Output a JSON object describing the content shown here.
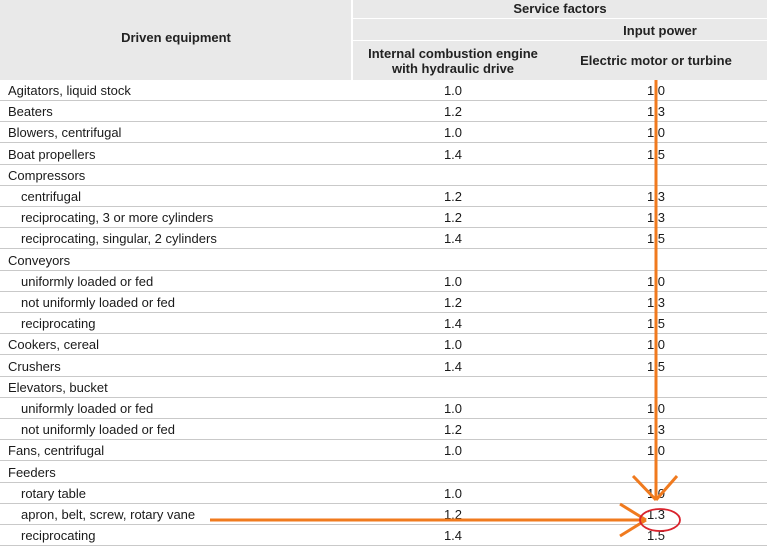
{
  "header": {
    "col1": "Driven equipment",
    "group": "Service factors",
    "subgroup": "Input power",
    "col2_line1": "Internal combustion engine",
    "col2_line2": "with hydraulic drive",
    "col3": "Electric motor or turbine"
  },
  "rows": [
    {
      "label": "Agitators, liquid stock",
      "indent": false,
      "ice": "1.0",
      "em": "1.0"
    },
    {
      "label": "Beaters",
      "indent": false,
      "ice": "1.2",
      "em": "1.3"
    },
    {
      "label": "Blowers, centrifugal",
      "indent": false,
      "ice": "1.0",
      "em": "1.0"
    },
    {
      "label": "Boat propellers",
      "indent": false,
      "ice": "1.4",
      "em": "1.5"
    },
    {
      "label": "Compressors",
      "indent": false,
      "ice": "",
      "em": ""
    },
    {
      "label": "centrifugal",
      "indent": true,
      "ice": "1.2",
      "em": "1.3"
    },
    {
      "label": "reciprocating, 3 or more cylinders",
      "indent": true,
      "ice": "1.2",
      "em": "1.3"
    },
    {
      "label": "reciprocating, singular, 2 cylinders",
      "indent": true,
      "ice": "1.4",
      "em": "1.5"
    },
    {
      "label": "Conveyors",
      "indent": false,
      "ice": "",
      "em": ""
    },
    {
      "label": "uniformly loaded or fed",
      "indent": true,
      "ice": "1.0",
      "em": "1.0"
    },
    {
      "label": "not uniformly loaded or fed",
      "indent": true,
      "ice": "1.2",
      "em": "1.3"
    },
    {
      "label": "reciprocating",
      "indent": true,
      "ice": "1.4",
      "em": "1.5"
    },
    {
      "label": "Cookers, cereal",
      "indent": false,
      "ice": "1.0",
      "em": "1.0"
    },
    {
      "label": "Crushers",
      "indent": false,
      "ice": "1.4",
      "em": "1.5"
    },
    {
      "label": "Elevators, bucket",
      "indent": false,
      "ice": "",
      "em": ""
    },
    {
      "label": "uniformly loaded or fed",
      "indent": true,
      "ice": "1.0",
      "em": "1.0"
    },
    {
      "label": "not uniformly loaded or fed",
      "indent": true,
      "ice": "1.2",
      "em": "1.3"
    },
    {
      "label": "Fans, centrifugal",
      "indent": false,
      "ice": "1.0",
      "em": "1.0"
    },
    {
      "label": "Feeders",
      "indent": false,
      "ice": "",
      "em": ""
    },
    {
      "label": "rotary table",
      "indent": true,
      "ice": "1.0",
      "em": "1.0"
    },
    {
      "label": "apron, belt, screw, rotary vane",
      "indent": true,
      "ice": "1.2",
      "em": "1.3"
    },
    {
      "label": "reciprocating",
      "indent": true,
      "ice": "1.4",
      "em": "1.5"
    }
  ],
  "annotation": {
    "arrow_color": "#f07a1e",
    "circle_color": "#d9232d",
    "highlight_value": "1.3"
  }
}
